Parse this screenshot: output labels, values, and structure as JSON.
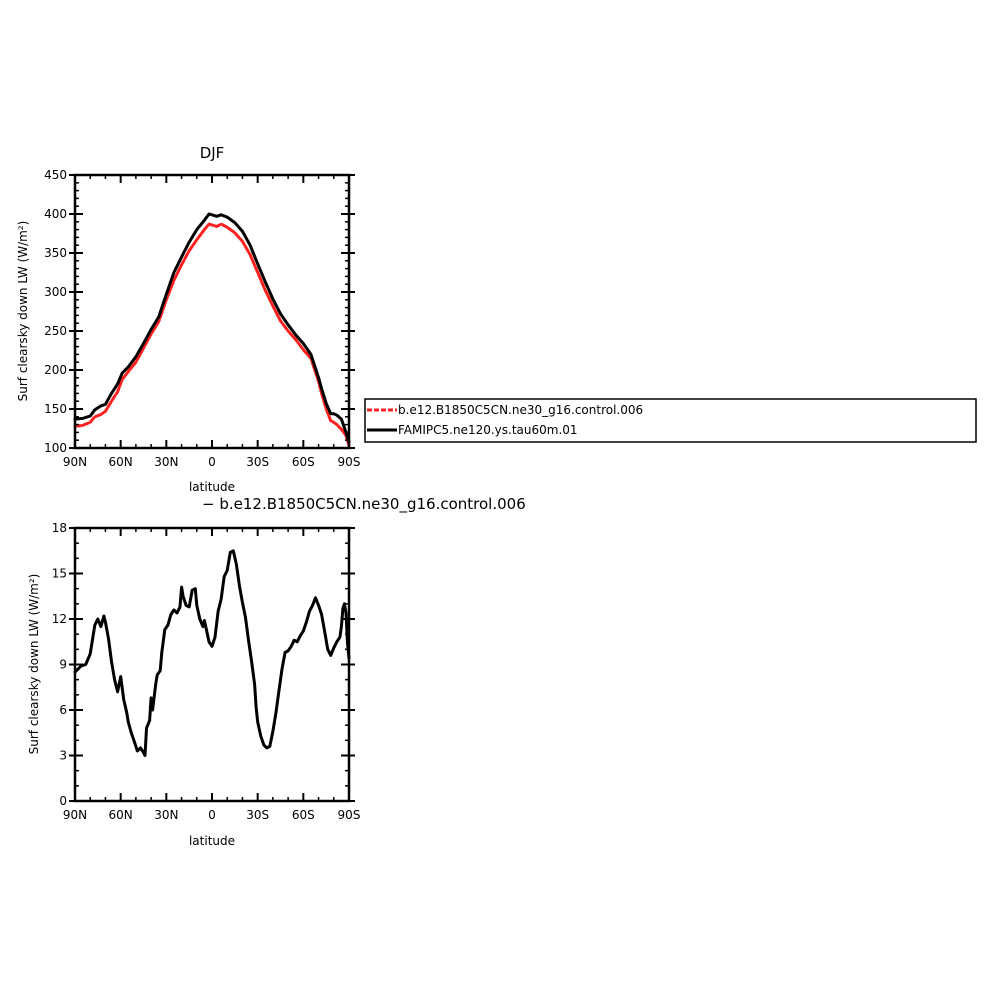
{
  "chart_data": [
    {
      "type": "line",
      "title": "DJF",
      "xlabel": "latitude",
      "ylabel": "Surf clearsky down LW (W/m²)",
      "xlim": [
        90,
        -90
      ],
      "ylim": [
        100,
        450
      ],
      "x_ticks": [
        90,
        60,
        30,
        0,
        -30,
        -60,
        -90
      ],
      "x_tick_labels": [
        "90N",
        "60N",
        "30N",
        "0",
        "30S",
        "60S",
        "90S"
      ],
      "y_ticks": [
        100,
        150,
        200,
        250,
        300,
        350,
        400,
        450
      ],
      "y_tick_labels": [
        "100",
        "150",
        "200",
        "250",
        "300",
        "350",
        "400",
        "450"
      ],
      "grid": false,
      "legend": "right, outside plot",
      "series": [
        {
          "name": "b.e12.B1850C5CN.ne30_g16.control.006",
          "color": "#ff2020",
          "dashed": true,
          "x": [
            90,
            85,
            80,
            77,
            73,
            70,
            66,
            62,
            59,
            55,
            50,
            45,
            40,
            35,
            30,
            25,
            20,
            15,
            10,
            5,
            2,
            0,
            -3,
            -6,
            -10,
            -15,
            -20,
            -25,
            -30,
            -35,
            -40,
            -45,
            -50,
            -55,
            -60,
            -65,
            -70,
            -72,
            -75,
            -78,
            -80,
            -82,
            -85,
            -88,
            -90
          ],
          "y": [
            128,
            129,
            133,
            140,
            143,
            147,
            160,
            172,
            188,
            198,
            210,
            228,
            246,
            262,
            290,
            315,
            335,
            353,
            367,
            380,
            387,
            386,
            384,
            387,
            383,
            376,
            365,
            348,
            325,
            302,
            282,
            263,
            250,
            239,
            226,
            215,
            185,
            170,
            150,
            135,
            133,
            130,
            124,
            116,
            103
          ]
        },
        {
          "name": "FAMIPC5.ne120.ys.tau60m.01",
          "color": "#000000",
          "dashed": false,
          "x": [
            90,
            85,
            80,
            77,
            73,
            70,
            66,
            62,
            59,
            55,
            50,
            45,
            40,
            35,
            30,
            25,
            20,
            15,
            10,
            5,
            2,
            0,
            -3,
            -6,
            -10,
            -15,
            -20,
            -25,
            -30,
            -35,
            -40,
            -45,
            -50,
            -55,
            -60,
            -65,
            -70,
            -72,
            -75,
            -78,
            -80,
            -82,
            -85,
            -88,
            -90
          ],
          "y": [
            137,
            138,
            141,
            149,
            154,
            156,
            170,
            182,
            196,
            204,
            217,
            234,
            252,
            268,
            297,
            325,
            345,
            364,
            380,
            392,
            400,
            399,
            397,
            399,
            396,
            389,
            378,
            360,
            336,
            313,
            291,
            272,
            258,
            245,
            234,
            220,
            190,
            176,
            157,
            144,
            144,
            142,
            137,
            120,
            108
          ]
        }
      ]
    },
    {
      "type": "line",
      "title": "− b.e12.B1850C5CN.ne30_g16.control.006",
      "xlabel": "latitude",
      "ylabel": "Surf clearsky down LW (W/m²)",
      "xlim": [
        90,
        -90
      ],
      "ylim": [
        0,
        18
      ],
      "x_ticks": [
        90,
        60,
        30,
        0,
        -30,
        -60,
        -90
      ],
      "x_tick_labels": [
        "90N",
        "60N",
        "30N",
        "0",
        "30S",
        "60S",
        "90S"
      ],
      "y_ticks": [
        0,
        3,
        6,
        9,
        12,
        15,
        18
      ],
      "y_tick_labels": [
        "0",
        "3",
        "6",
        "9",
        "12",
        "15",
        "18"
      ],
      "grid": false,
      "series": [
        {
          "color": "#000000",
          "x": [
            90,
            86,
            83,
            80,
            77,
            75,
            73,
            71,
            70,
            68,
            66,
            64,
            62,
            60,
            58,
            56,
            55,
            53,
            51,
            49,
            47,
            45,
            44,
            43,
            41,
            40,
            39,
            37,
            36,
            34,
            33,
            31,
            29,
            27,
            25,
            23,
            21,
            20,
            19,
            17,
            15,
            13,
            11,
            10,
            8,
            6,
            5,
            3,
            2,
            0,
            -2,
            -4,
            -6,
            -8,
            -10,
            -12,
            -14,
            -16,
            -18,
            -20,
            -22,
            -24,
            -26,
            -28,
            -29,
            -30,
            -32,
            -34,
            -36,
            -38,
            -40,
            -42,
            -44,
            -46,
            -48,
            -50,
            -52,
            -54,
            -56,
            -58,
            -60,
            -62,
            -64,
            -66,
            -68,
            -70,
            -72,
            -74,
            -76,
            -78,
            -80,
            -82,
            -84,
            -85,
            -86,
            -87,
            -88,
            -89,
            -90
          ],
          "y": [
            8.5,
            8.9,
            9.0,
            9.7,
            11.6,
            12.0,
            11.5,
            12.2,
            11.8,
            10.7,
            9.2,
            8.0,
            7.2,
            8.2,
            6.7,
            5.8,
            5.2,
            4.5,
            3.9,
            3.3,
            3.5,
            3.2,
            3.0,
            4.8,
            5.3,
            6.8,
            6.0,
            7.7,
            8.3,
            8.6,
            9.8,
            11.3,
            11.6,
            12.3,
            12.6,
            12.4,
            12.8,
            14.1,
            13.5,
            12.9,
            12.8,
            13.9,
            14.0,
            12.9,
            12.0,
            11.5,
            11.9,
            11.0,
            10.5,
            10.2,
            10.8,
            12.5,
            13.3,
            14.8,
            15.2,
            16.4,
            16.5,
            15.6,
            14.2,
            13.1,
            12.1,
            10.6,
            9.2,
            7.7,
            6.2,
            5.2,
            4.3,
            3.7,
            3.5,
            3.6,
            4.6,
            5.8,
            7.3,
            8.7,
            9.8,
            9.9,
            10.2,
            10.6,
            10.5,
            10.9,
            11.2,
            11.8,
            12.5,
            12.9,
            13.4,
            12.9,
            12.3,
            11.2,
            10.0,
            9.6,
            10.1,
            10.5,
            10.8,
            11.5,
            12.7,
            13.0,
            12.4,
            10.4,
            9.4
          ]
        }
      ]
    }
  ]
}
